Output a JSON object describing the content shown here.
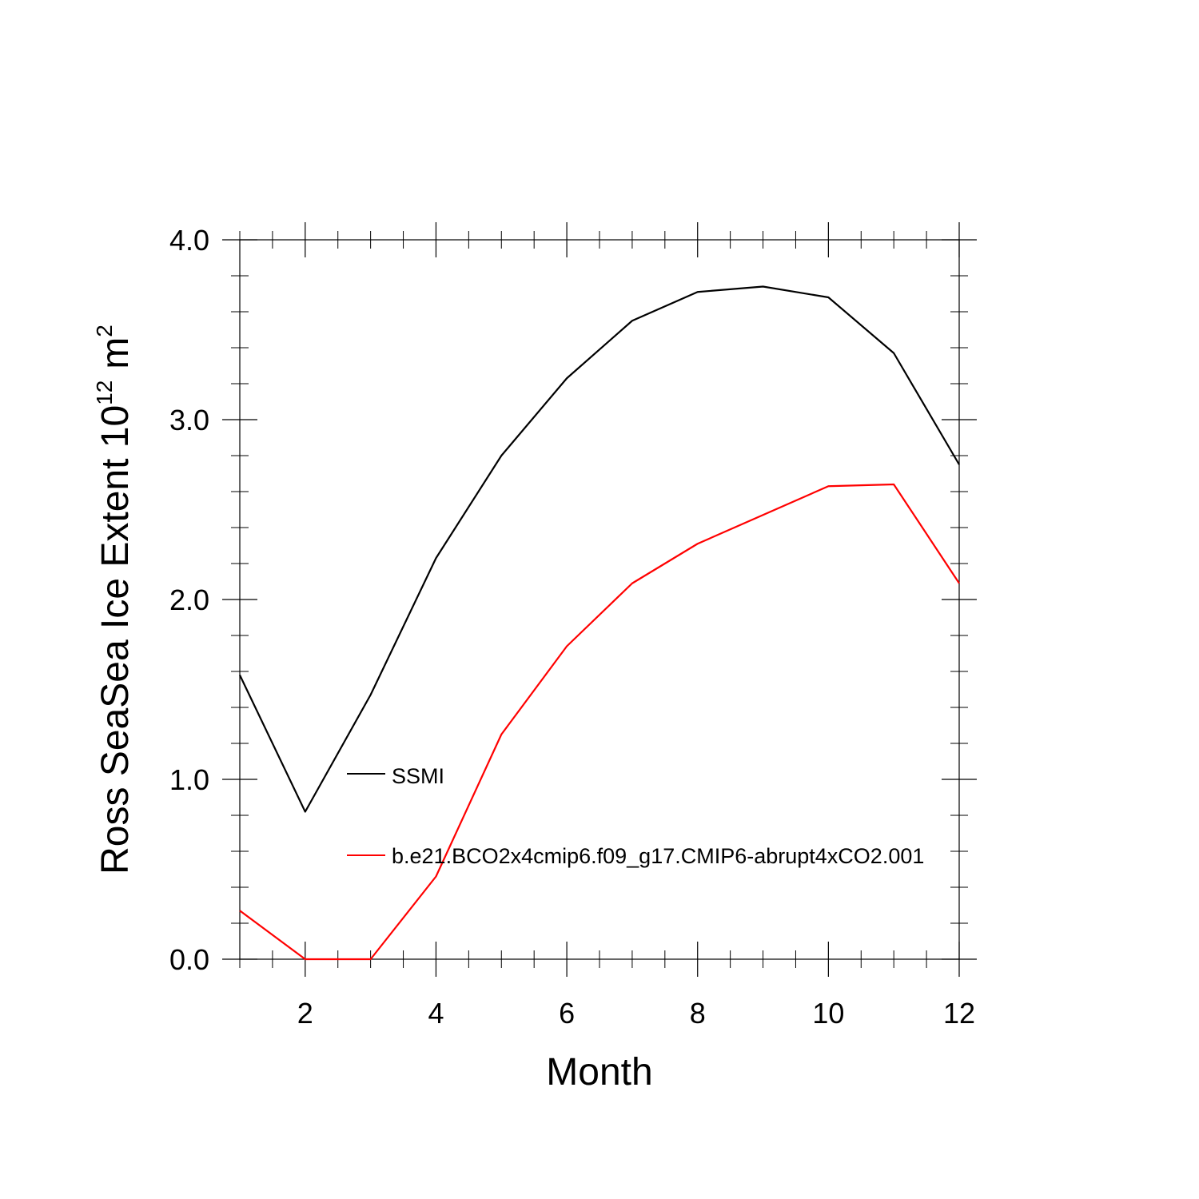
{
  "chart_data": {
    "type": "line",
    "title": "",
    "xlabel": "Month",
    "ylabel": "Ross SeaSea Ice Extent 10",
    "ylabel_superscript": "12",
    "ylabel_unit": "m",
    "ylabel_unit_superscript": "2",
    "xlim": [
      1,
      12
    ],
    "ylim": [
      0,
      4
    ],
    "x_ticks": [
      2,
      4,
      6,
      8,
      10,
      12
    ],
    "x_tick_labels": [
      "2",
      "4",
      "6",
      "8",
      "10",
      "12"
    ],
    "y_ticks": [
      0,
      1,
      2,
      3,
      4
    ],
    "y_tick_labels": [
      "0.0",
      "1.0",
      "2.0",
      "3.0",
      "4.0"
    ],
    "x": [
      1,
      2,
      3,
      4,
      5,
      6,
      7,
      8,
      9,
      10,
      11,
      12
    ],
    "series": [
      {
        "name": "SSMI",
        "color": "#000000",
        "values": [
          1.58,
          0.82,
          1.47,
          2.23,
          2.8,
          3.23,
          3.55,
          3.71,
          3.74,
          3.68,
          3.37,
          2.75
        ]
      },
      {
        "name": "b.e21.BCO2x4cmip6.f09_g17.CMIP6-abrupt4xCO2.001",
        "color": "#ff0000",
        "values": [
          0.27,
          0.0,
          0.0,
          0.46,
          1.25,
          1.74,
          2.09,
          2.31,
          2.47,
          2.63,
          2.64,
          2.09
        ]
      }
    ],
    "legend_position": "inside-lower-left",
    "grid": false
  }
}
